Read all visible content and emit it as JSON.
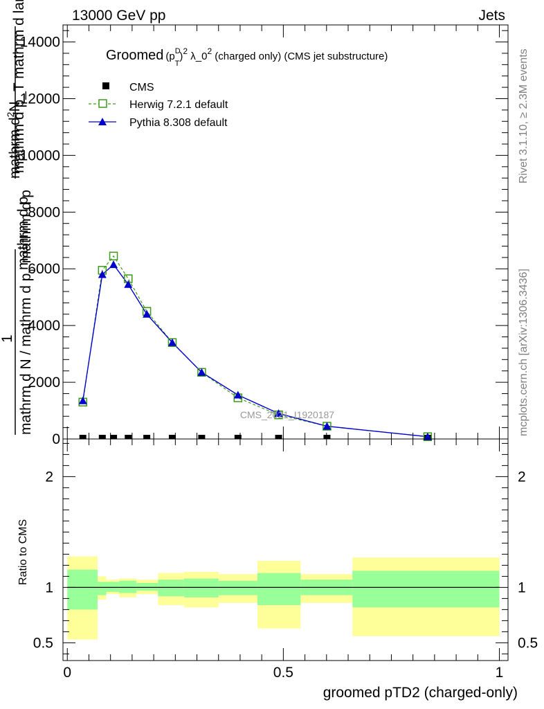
{
  "header": {
    "energy_label": "13000 GeV pp",
    "category_label": "Jets"
  },
  "side_labels": {
    "rivet": "Rivet 3.1.10, ≥ 2.3M events",
    "mcplots": "mcplots.cern.ch [arXiv:1306.3436]"
  },
  "watermark": "CMS_2021_I1920187",
  "main_title": {
    "prefix": "Groomed",
    "paren": "(p",
    "sub_t": "T",
    "sup_d": "D",
    "close": ")",
    "sup_2": "2",
    "suffix": " λ_0",
    "sup_end": "2",
    "tail": "  (charged only) (CMS jet substructure)"
  },
  "y_axis_label": {
    "line1": "mathrm d",
    "line1_sup": "2",
    "line1b": "N",
    "frac_num_1": "1",
    "denominator": "mathrm d N / mathrm d p",
    "denominator_sub": "T",
    "denominator_tail": " mathrm d p",
    "mid": "mathrm d p",
    "top_label": "mathrm d p_T mathrm d lambda"
  },
  "chart_data": {
    "type": "line",
    "title": "",
    "xlabel": "groomed pTD2 (charged-only)",
    "ylabel": "",
    "xlim": [
      -0.01,
      1.02
    ],
    "ylim": [
      0,
      14600
    ],
    "x_ticks": [
      0,
      0.5,
      1
    ],
    "x_tick_labels": [
      "0",
      "0.5",
      "1"
    ],
    "y_ticks": [
      0,
      2000,
      4000,
      6000,
      8000,
      10000,
      12000,
      14000
    ],
    "y_tick_labels": [
      "0",
      "2000",
      "4000",
      "6000",
      "8000",
      "10000",
      "12000",
      "14000"
    ],
    "x": [
      0.036,
      0.081,
      0.107,
      0.141,
      0.184,
      0.243,
      0.311,
      0.395,
      0.489,
      0.601,
      0.834
    ],
    "series": [
      {
        "name": "CMS",
        "marker": "square-filled",
        "color": "#000000",
        "values": [
          0,
          0,
          0,
          0,
          0,
          0,
          0,
          0,
          0,
          0,
          0
        ]
      },
      {
        "name": "Herwig 7.2.1 default",
        "marker": "square-open",
        "color": "#3a9a1a",
        "dashed": true,
        "values": [
          1300,
          5950,
          6450,
          5650,
          4500,
          3400,
          2350,
          1450,
          850,
          450,
          80
        ]
      },
      {
        "name": "Pythia 8.308 default",
        "marker": "triangle-filled",
        "color": "#0000cc",
        "dashed": false,
        "values": [
          1350,
          5800,
          6150,
          5450,
          4400,
          3400,
          2350,
          1550,
          900,
          450,
          80
        ]
      }
    ],
    "ratio": {
      "ylabel": "Ratio to CMS",
      "ylim": [
        0.34,
        2.34
      ],
      "y_ticks": [
        0.5,
        1,
        2
      ],
      "y_tick_labels": [
        "0.5",
        "1",
        "2"
      ],
      "bins": [
        {
          "lo": 0.0,
          "hi": 0.07,
          "in_lo": 0.8,
          "in_hi": 1.16,
          "out_lo": 0.53,
          "out_hi": 1.28
        },
        {
          "lo": 0.07,
          "hi": 0.09,
          "in_lo": 0.93,
          "in_hi": 1.05,
          "out_lo": 0.89,
          "out_hi": 1.1
        },
        {
          "lo": 0.09,
          "hi": 0.12,
          "in_lo": 0.96,
          "in_hi": 1.05,
          "out_lo": 0.94,
          "out_hi": 1.07
        },
        {
          "lo": 0.12,
          "hi": 0.16,
          "in_lo": 0.95,
          "in_hi": 1.06,
          "out_lo": 0.91,
          "out_hi": 1.08
        },
        {
          "lo": 0.16,
          "hi": 0.21,
          "in_lo": 0.97,
          "in_hi": 1.04,
          "out_lo": 0.94,
          "out_hi": 1.07
        },
        {
          "lo": 0.21,
          "hi": 0.27,
          "in_lo": 0.92,
          "in_hi": 1.07,
          "out_lo": 0.84,
          "out_hi": 1.13
        },
        {
          "lo": 0.27,
          "hi": 0.35,
          "in_lo": 0.91,
          "in_hi": 1.08,
          "out_lo": 0.82,
          "out_hi": 1.14
        },
        {
          "lo": 0.35,
          "hi": 0.44,
          "in_lo": 0.93,
          "in_hi": 1.06,
          "out_lo": 0.86,
          "out_hi": 1.12
        },
        {
          "lo": 0.44,
          "hi": 0.54,
          "in_lo": 0.84,
          "in_hi": 1.13,
          "out_lo": 0.63,
          "out_hi": 1.24
        },
        {
          "lo": 0.54,
          "hi": 0.66,
          "in_lo": 0.93,
          "in_hi": 1.07,
          "out_lo": 0.86,
          "out_hi": 1.12
        },
        {
          "lo": 0.66,
          "hi": 1.0,
          "in_lo": 0.82,
          "in_hi": 1.15,
          "out_lo": 0.56,
          "out_hi": 1.27
        }
      ]
    }
  },
  "colors": {
    "band_outer": "#ffff99",
    "band_inner": "#99ff99",
    "herwig": "#3a9a1a",
    "pythia": "#0000cc",
    "data": "#000000",
    "watermark": "#999999",
    "side_text": "#808080"
  }
}
